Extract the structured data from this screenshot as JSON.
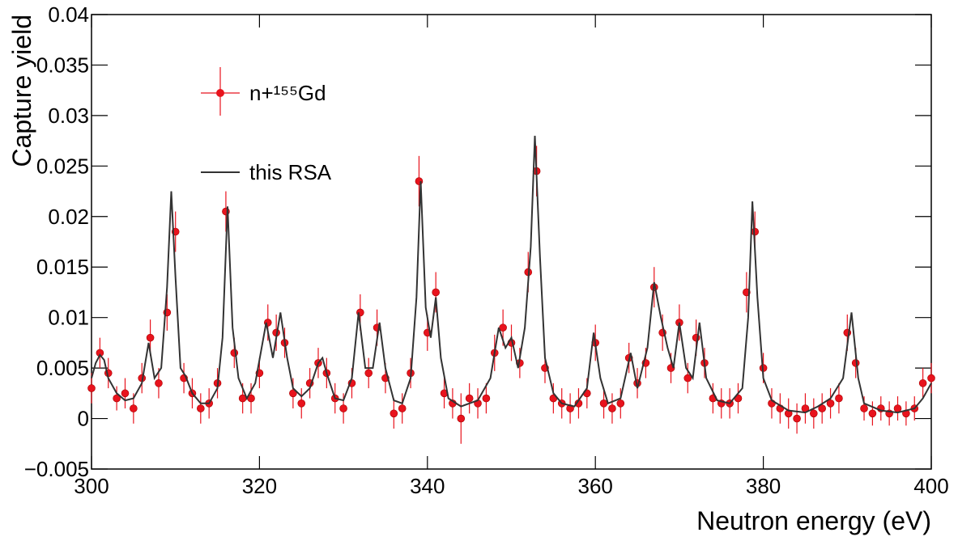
{
  "chart_data": {
    "type": "scatter",
    "xlabel": "Neutron energy (eV)",
    "ylabel": "Capture yield",
    "xlim": [
      300,
      400
    ],
    "xticks": [
      300,
      320,
      340,
      360,
      380,
      400
    ],
    "ylim": [
      -0.005,
      0.04
    ],
    "yticks": [
      {
        "value": -0.005,
        "label": "−0.005"
      },
      0,
      0.005,
      0.01,
      0.015,
      0.02,
      0.025,
      0.03,
      0.035,
      0.04
    ],
    "series": [
      {
        "name": "n+¹⁵⁵Gd",
        "type": "errorbar",
        "color": "#e8131d",
        "x": [
          300,
          301,
          302,
          303,
          304,
          305,
          306,
          307,
          308,
          309,
          310,
          311,
          312,
          313,
          314,
          315,
          316,
          317,
          318,
          319,
          320,
          321,
          322,
          323,
          324,
          325,
          326,
          327,
          328,
          329,
          330,
          331,
          332,
          333,
          334,
          335,
          336,
          337,
          338,
          339,
          340,
          341,
          342,
          343,
          344,
          345,
          346,
          347,
          348,
          349,
          350,
          351,
          352,
          353,
          354,
          355,
          356,
          357,
          358,
          359,
          360,
          361,
          362,
          363,
          364,
          365,
          366,
          367,
          368,
          369,
          370,
          371,
          372,
          373,
          374,
          375,
          376,
          377,
          378,
          379,
          380,
          381,
          382,
          383,
          384,
          385,
          386,
          387,
          388,
          389,
          390,
          391,
          392,
          393,
          394,
          395,
          396,
          397,
          398,
          399,
          400
        ],
        "values": [
          0.003,
          0.0065,
          0.0045,
          0.002,
          0.0025,
          0.001,
          0.004,
          0.008,
          0.0035,
          0.0105,
          0.0185,
          0.004,
          0.0025,
          0.001,
          0.0015,
          0.0035,
          0.0205,
          0.0065,
          0.002,
          0.002,
          0.0045,
          0.0095,
          0.0085,
          0.0075,
          0.0025,
          0.0015,
          0.0035,
          0.0055,
          0.0045,
          0.002,
          0.001,
          0.0035,
          0.0105,
          0.0045,
          0.009,
          0.004,
          0.0005,
          0.001,
          0.0045,
          0.0235,
          0.0085,
          0.0125,
          0.0025,
          0.0015,
          0,
          0.002,
          0.0015,
          0.002,
          0.0065,
          0.009,
          0.0075,
          0.0055,
          0.0145,
          0.0245,
          0.005,
          0.002,
          0.0015,
          0.001,
          0.0015,
          0.0025,
          0.0075,
          0.0015,
          0.001,
          0.0015,
          0.006,
          0.0035,
          0.0055,
          0.013,
          0.0085,
          0.005,
          0.0095,
          0.004,
          0.008,
          0.0055,
          0.002,
          0.0015,
          0.0015,
          0.002,
          0.0125,
          0.0185,
          0.005,
          0.0015,
          0.001,
          0.0005,
          0,
          0.001,
          0.0005,
          0.001,
          0.0015,
          0.002,
          0.0085,
          0.0055,
          0.001,
          0.0005,
          0.001,
          0.0005,
          0.001,
          0.0005,
          0.001,
          0.0035,
          0.004
        ],
        "errors": [
          0.0015,
          0.0015,
          0.0015,
          0.0012,
          0.0015,
          0.0015,
          0.0015,
          0.0018,
          0.0015,
          0.0018,
          0.002,
          0.0015,
          0.0015,
          0.0015,
          0.0015,
          0.0015,
          0.002,
          0.0015,
          0.0015,
          0.0015,
          0.0015,
          0.0018,
          0.0018,
          0.0015,
          0.0015,
          0.0015,
          0.0015,
          0.0015,
          0.0015,
          0.0015,
          0.0015,
          0.0015,
          0.0018,
          0.0015,
          0.0018,
          0.0015,
          0.0015,
          0.0015,
          0.0015,
          0.0025,
          0.0018,
          0.002,
          0.0015,
          0.0015,
          0.0025,
          0.0015,
          0.0015,
          0.0015,
          0.0018,
          0.0018,
          0.0018,
          0.0015,
          0.002,
          0.0025,
          0.0015,
          0.0015,
          0.0015,
          0.0015,
          0.0015,
          0.0015,
          0.0018,
          0.0015,
          0.0015,
          0.0015,
          0.0015,
          0.0015,
          0.0015,
          0.002,
          0.0018,
          0.0015,
          0.0018,
          0.0015,
          0.0018,
          0.0015,
          0.0015,
          0.0015,
          0.0015,
          0.0015,
          0.002,
          0.002,
          0.0015,
          0.0015,
          0.0015,
          0.0015,
          0.0015,
          0.0015,
          0.0015,
          0.0015,
          0.0015,
          0.0015,
          0.0018,
          0.0015,
          0.0012,
          0.0012,
          0.0012,
          0.0012,
          0.0012,
          0.0012,
          0.0012,
          0.0015,
          0.0015
        ]
      },
      {
        "name": "this RSA",
        "type": "line",
        "color": "#333333",
        "x": [
          300,
          300.5,
          301,
          301.5,
          302,
          303,
          304,
          305,
          306,
          306.8,
          307.5,
          308.3,
          309,
          309.5,
          310,
          310.6,
          311.2,
          312,
          313,
          314,
          315,
          315.6,
          316.2,
          316.8,
          317.5,
          318.5,
          319.5,
          320.8,
          321.6,
          322.5,
          323.3,
          324,
          325,
          326,
          327,
          327.5,
          328,
          329,
          330,
          331,
          331.8,
          332.6,
          333.5,
          334.3,
          335,
          336,
          337,
          338,
          338.7,
          339.2,
          339.8,
          340.4,
          341,
          341.6,
          342.5,
          344,
          346,
          347.5,
          348.5,
          349.3,
          350,
          350.8,
          351.6,
          352.3,
          352.8,
          353.4,
          354,
          355,
          356,
          357.5,
          359,
          359.8,
          360.6,
          361.5,
          363,
          364.2,
          365,
          366.2,
          367,
          367.8,
          368.6,
          369.3,
          370,
          370.8,
          371.6,
          372.4,
          373.2,
          374.5,
          376,
          377.5,
          378.2,
          378.7,
          379.3,
          380,
          381,
          383,
          385,
          386.5,
          388,
          389.5,
          390.5,
          391.3,
          392,
          394,
          396,
          398,
          399,
          400
        ],
        "values": [
          0.004,
          0.0055,
          0.0063,
          0.0058,
          0.004,
          0.0025,
          0.0018,
          0.002,
          0.0035,
          0.0075,
          0.004,
          0.005,
          0.013,
          0.0225,
          0.014,
          0.005,
          0.0042,
          0.0025,
          0.0015,
          0.0015,
          0.003,
          0.008,
          0.021,
          0.009,
          0.004,
          0.002,
          0.0035,
          0.0095,
          0.006,
          0.0105,
          0.006,
          0.003,
          0.0022,
          0.003,
          0.0055,
          0.006,
          0.0045,
          0.002,
          0.0018,
          0.004,
          0.0105,
          0.005,
          0.005,
          0.0095,
          0.005,
          0.0018,
          0.0015,
          0.004,
          0.012,
          0.0235,
          0.011,
          0.008,
          0.012,
          0.006,
          0.002,
          0.0012,
          0.0018,
          0.004,
          0.009,
          0.007,
          0.008,
          0.005,
          0.009,
          0.017,
          0.028,
          0.016,
          0.006,
          0.0025,
          0.0015,
          0.0012,
          0.003,
          0.0085,
          0.004,
          0.0015,
          0.002,
          0.0065,
          0.003,
          0.007,
          0.0135,
          0.01,
          0.007,
          0.005,
          0.0095,
          0.005,
          0.004,
          0.0095,
          0.004,
          0.0018,
          0.0015,
          0.003,
          0.01,
          0.0215,
          0.012,
          0.004,
          0.0018,
          0.0008,
          0.0006,
          0.0012,
          0.002,
          0.004,
          0.0105,
          0.004,
          0.0015,
          0.0008,
          0.0006,
          0.001,
          0.002,
          0.0035
        ]
      }
    ]
  }
}
